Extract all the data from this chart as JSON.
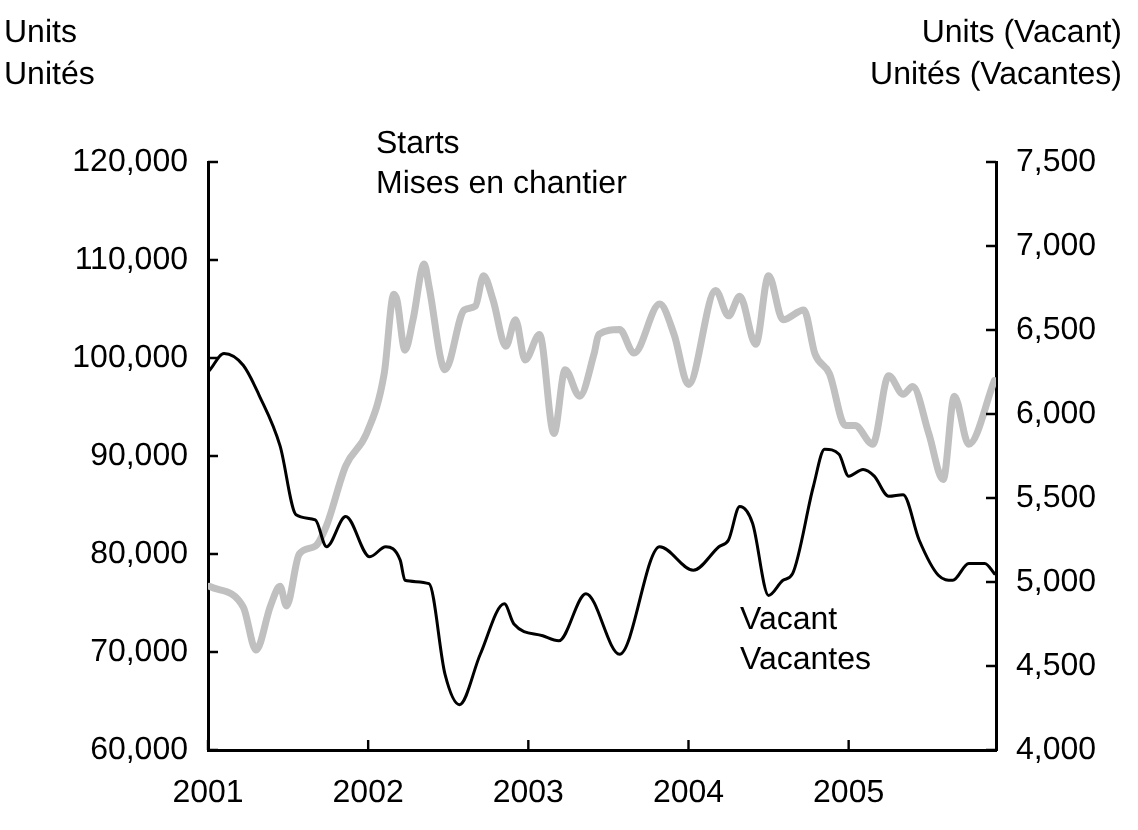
{
  "chart_data": {
    "type": "line",
    "ylabel": "Units\nUnités",
    "y2label": "Units (Vacant)\nUnités (Vacantes)",
    "xlim": [
      2001,
      2005.92
    ],
    "xticks": [
      2001,
      2002,
      2003,
      2004,
      2005
    ],
    "ylim": [
      60000,
      120000
    ],
    "yticks": [
      {
        "value": 60000,
        "label": "60,000"
      },
      {
        "value": 70000,
        "label": "70,000"
      },
      {
        "value": 80000,
        "label": "80,000"
      },
      {
        "value": 90000,
        "label": "90,000"
      },
      {
        "value": 100000,
        "label": "100,000"
      },
      {
        "value": 110000,
        "label": "110,000"
      },
      {
        "value": 120000,
        "label": "120,000"
      }
    ],
    "y2lim": [
      4000,
      7500
    ],
    "y2ticks": [
      {
        "value": 4000,
        "label": "4,000"
      },
      {
        "value": 4500,
        "label": "4,500"
      },
      {
        "value": 5000,
        "label": "5,000"
      },
      {
        "value": 5500,
        "label": "5,500"
      },
      {
        "value": 6000,
        "label": "6,000"
      },
      {
        "value": 6500,
        "label": "6,500"
      },
      {
        "value": 7000,
        "label": "7,000"
      },
      {
        "value": 7500,
        "label": "7,500"
      }
    ],
    "grid": false,
    "legend": false,
    "marker": "none",
    "line_style": "solid",
    "series": [
      {
        "name": "Starts\nMises en chantier",
        "color": "#c0c0c0",
        "x": [
          2001.01,
          2001.22,
          2001.3,
          2001.39,
          2001.45,
          2001.49,
          2001.57,
          2001.67,
          2001.74,
          2001.86,
          2001.99,
          2002.1,
          2002.16,
          2002.18,
          2002.23,
          2002.28,
          2002.35,
          2002.38,
          2002.48,
          2002.6,
          2002.67,
          2002.72,
          2002.78,
          2002.86,
          2002.92,
          2002.98,
          2003.07,
          2003.16,
          2003.23,
          2003.32,
          2003.41,
          2003.44,
          2003.57,
          2003.66,
          2003.82,
          2003.91,
          2004.0,
          2004.17,
          2004.25,
          2004.32,
          2004.42,
          2004.5,
          2004.59,
          2004.72,
          2004.79,
          2004.88,
          2004.98,
          2005.04,
          2005.15,
          2005.25,
          2005.34,
          2005.4,
          2005.5,
          2005.59,
          2005.66,
          2005.75,
          2005.91
        ],
        "values": [
          76700,
          74600,
          70200,
          74700,
          76700,
          74700,
          80000,
          80800,
          82900,
          89000,
          92300,
          98400,
          106500,
          105900,
          100800,
          103900,
          109600,
          107300,
          98800,
          104900,
          105300,
          108400,
          105900,
          101200,
          103900,
          99800,
          102400,
          92300,
          98800,
          96100,
          100400,
          102400,
          102900,
          100500,
          105500,
          102400,
          97300,
          106900,
          104300,
          106300,
          101400,
          108400,
          103900,
          104900,
          100400,
          98400,
          93100,
          93100,
          91200,
          98200,
          96300,
          97100,
          92300,
          87600,
          96100,
          91200,
          97700
        ]
      },
      {
        "name": "Vacant\nVacantes",
        "color": "#000000",
        "axis": "y2",
        "x": [
          2001.01,
          2001.1,
          2001.22,
          2001.32,
          2001.45,
          2001.55,
          2001.67,
          2001.74,
          2001.86,
          2002.01,
          2002.11,
          2002.2,
          2002.23,
          2002.38,
          2002.48,
          2002.57,
          2002.7,
          2002.85,
          2002.91,
          2003.09,
          2003.19,
          2003.36,
          2003.57,
          2003.82,
          2004.03,
          2004.19,
          2004.25,
          2004.32,
          2004.4,
          2004.5,
          2004.59,
          2004.65,
          2004.78,
          2004.85,
          2004.94,
          2005.0,
          2005.09,
          2005.16,
          2005.25,
          2005.34,
          2005.44,
          2005.56,
          2005.65,
          2005.75,
          2005.85,
          2005.91
        ],
        "values": [
          6260,
          6360,
          6290,
          6110,
          5810,
          5400,
          5370,
          5210,
          5390,
          5150,
          5210,
          5130,
          5010,
          4990,
          4450,
          4270,
          4570,
          4870,
          4750,
          4680,
          4650,
          4930,
          4570,
          5210,
          5070,
          5210,
          5250,
          5450,
          5350,
          4920,
          5010,
          5050,
          5570,
          5790,
          5760,
          5630,
          5670,
          5630,
          5510,
          5520,
          5250,
          5040,
          5010,
          5110,
          5110,
          5050
        ]
      }
    ]
  }
}
